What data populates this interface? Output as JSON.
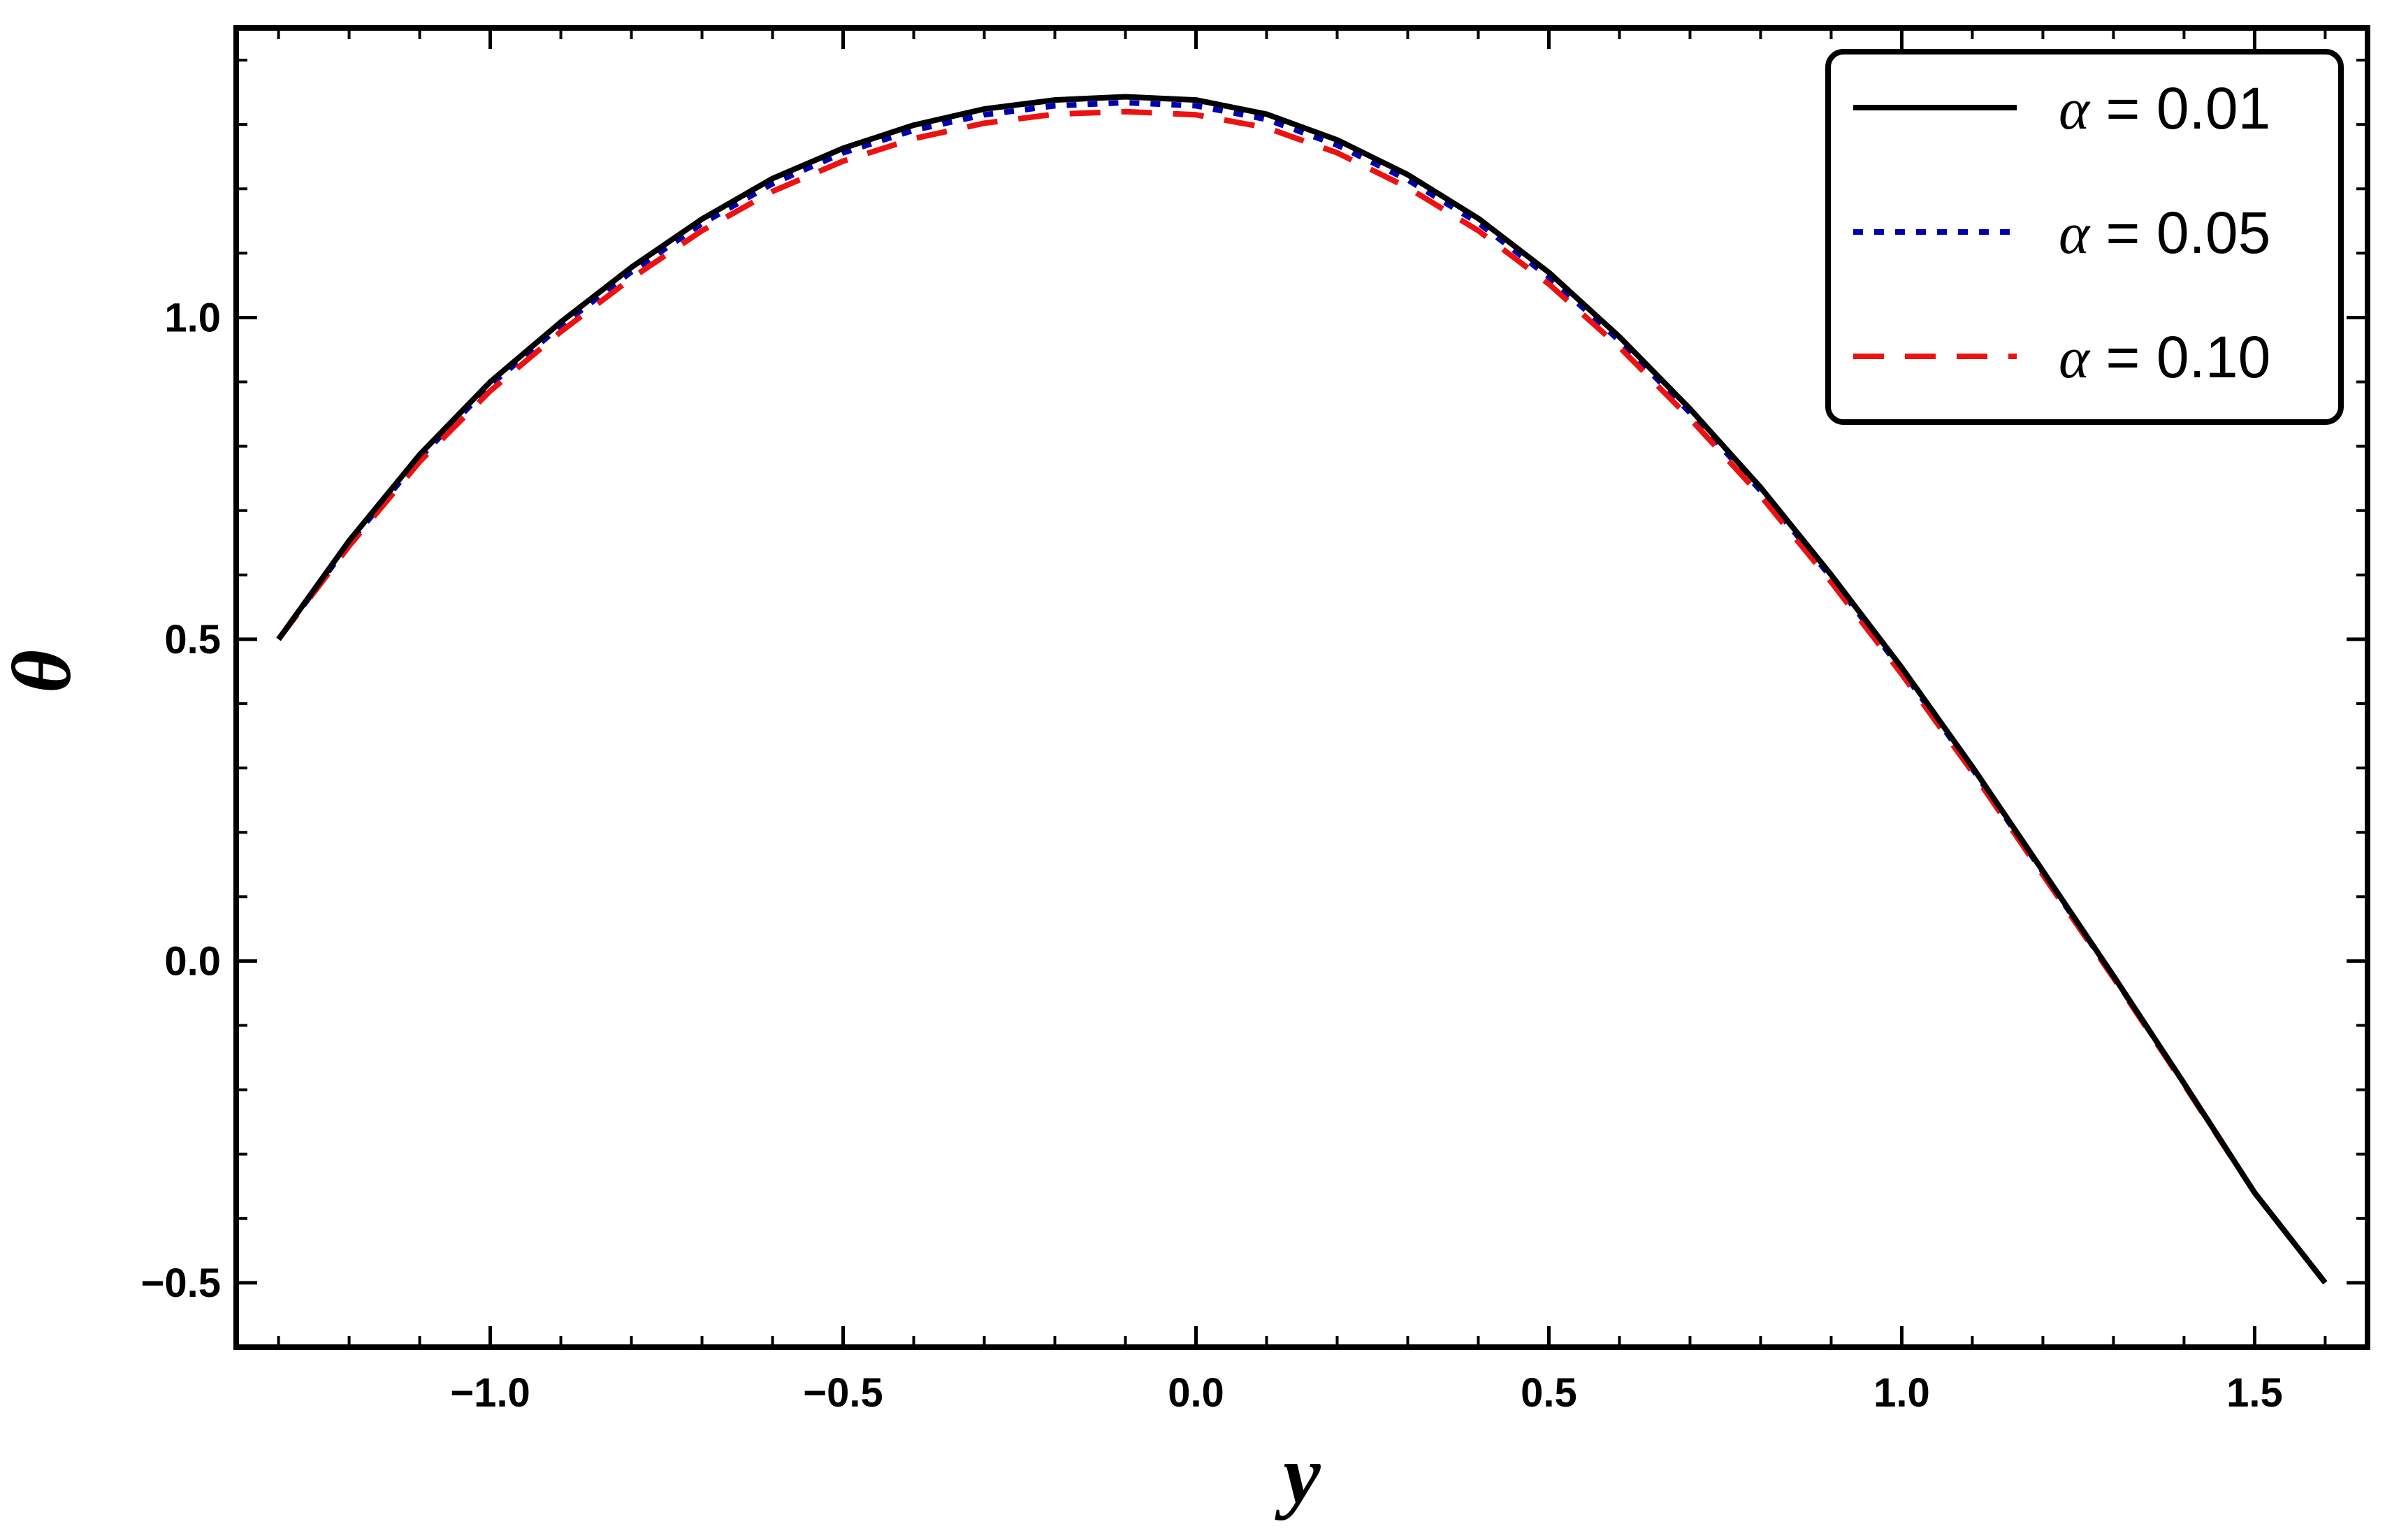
{
  "chart_data": {
    "type": "line",
    "xlabel": "y",
    "ylabel": "θ",
    "xlim": [
      -1.36,
      1.66
    ],
    "ylim": [
      -0.6,
      1.45
    ],
    "x_ticks": [
      -1.0,
      -0.5,
      0.0,
      0.5,
      1.0,
      1.5
    ],
    "x_tick_labels": [
      "−1.0",
      "−0.5",
      "0.0",
      "0.5",
      "1.0",
      "1.5"
    ],
    "y_ticks": [
      -0.5,
      0.0,
      0.5,
      1.0
    ],
    "y_tick_labels": [
      "−0.5",
      "0.0",
      "0.5",
      "1.0"
    ],
    "grid": false,
    "legend_position": "top-right",
    "series": [
      {
        "name": "α = 0.01",
        "legend_symbol": "α",
        "legend_value": " = 0.01",
        "color": "#000000",
        "style": "solid",
        "x": [
          -1.3,
          -1.2,
          -1.1,
          -1.0,
          -0.9,
          -0.8,
          -0.7,
          -0.6,
          -0.5,
          -0.4,
          -0.3,
          -0.2,
          -0.1,
          0.0,
          0.1,
          0.2,
          0.3,
          0.4,
          0.5,
          0.6,
          0.7,
          0.8,
          0.9,
          1.0,
          1.1,
          1.2,
          1.3,
          1.4,
          1.5,
          1.6
        ],
        "y": [
          0.5,
          0.653,
          0.787,
          0.9,
          0.993,
          1.078,
          1.153,
          1.216,
          1.263,
          1.299,
          1.324,
          1.338,
          1.343,
          1.338,
          1.316,
          1.276,
          1.222,
          1.154,
          1.07,
          0.97,
          0.858,
          0.736,
          0.6,
          0.456,
          0.302,
          0.14,
          -0.023,
          -0.19,
          -0.36,
          -0.5
        ]
      },
      {
        "name": "α = 0.05",
        "legend_symbol": "α",
        "legend_value": " = 0.05",
        "color": "#0000b0",
        "style": "dotted",
        "x": [
          -1.3,
          -1.2,
          -1.1,
          -1.0,
          -0.9,
          -0.8,
          -0.7,
          -0.6,
          -0.5,
          -0.4,
          -0.3,
          -0.2,
          -0.1,
          0.0,
          0.1,
          0.2,
          0.3,
          0.4,
          0.5,
          0.6,
          0.7,
          0.8,
          0.9,
          1.0,
          1.1,
          1.2,
          1.3,
          1.4,
          1.5,
          1.6
        ],
        "y": [
          0.5,
          0.649,
          0.782,
          0.895,
          0.987,
          1.071,
          1.146,
          1.208,
          1.256,
          1.291,
          1.315,
          1.329,
          1.334,
          1.329,
          1.308,
          1.268,
          1.214,
          1.147,
          1.063,
          0.964,
          0.852,
          0.731,
          0.596,
          0.452,
          0.299,
          0.138,
          -0.024,
          -0.19,
          -0.36,
          -0.5
        ]
      },
      {
        "name": "α = 0.10",
        "legend_symbol": "α",
        "legend_value": " = 0.10",
        "color": "#ee1111",
        "style": "dashed",
        "x": [
          -1.3,
          -1.2,
          -1.1,
          -1.0,
          -0.9,
          -0.8,
          -0.7,
          -0.6,
          -0.5,
          -0.4,
          -0.3,
          -0.2,
          -0.1,
          0.0,
          0.1,
          0.2,
          0.3,
          0.4,
          0.5,
          0.6,
          0.7,
          0.8,
          0.9,
          1.0,
          1.1,
          1.2,
          1.3,
          1.4,
          1.5,
          1.6
        ],
        "y": [
          0.5,
          0.645,
          0.776,
          0.886,
          0.978,
          1.061,
          1.135,
          1.196,
          1.243,
          1.278,
          1.302,
          1.316,
          1.32,
          1.315,
          1.295,
          1.256,
          1.202,
          1.135,
          1.052,
          0.954,
          0.843,
          0.723,
          0.589,
          0.446,
          0.294,
          0.134,
          -0.026,
          -0.192,
          -0.36,
          -0.5
        ]
      }
    ]
  }
}
